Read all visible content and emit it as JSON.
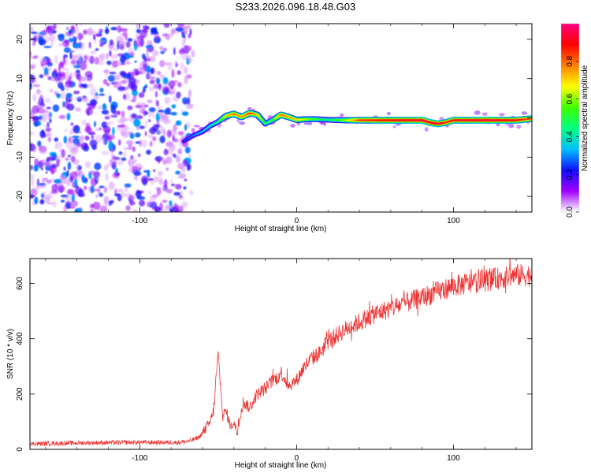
{
  "figure": {
    "title": "S233.2026.096.18.48.G03"
  },
  "chart_data": [
    {
      "type": "heatmap",
      "name": "spectrogram",
      "xlabel": "Height of straight line (km)",
      "ylabel": "Frequency (Hz)",
      "xlim": [
        -170,
        150
      ],
      "ylim": [
        -24,
        24
      ],
      "x_ticks": [
        -100,
        0,
        100
      ],
      "x_tick_labels": [
        "-100",
        "0",
        "100"
      ],
      "y_ticks": [
        -20,
        -10,
        0,
        10,
        20
      ],
      "y_tick_labels": [
        "-20",
        "-10",
        "0",
        "10",
        "20"
      ],
      "colorbar": {
        "label": "Normalized spectral amplitude",
        "range": [
          0,
          1
        ],
        "ticks": [
          0.0,
          0.2,
          0.4,
          0.6,
          0.8
        ],
        "tick_labels": [
          "0.0",
          "0.2",
          "0.4",
          "0.6",
          "0.8"
        ],
        "colormap": [
          "#ffffff",
          "#a000ff",
          "#1010ff",
          "#00c0ff",
          "#00ff80",
          "#40ff00",
          "#ffff00",
          "#ff8000",
          "#ff0000",
          "#ff0080"
        ]
      },
      "noise_region": {
        "x_range": [
          -170,
          -68
        ],
        "frequency_range": [
          -24,
          24
        ],
        "amplitude": "0.05–0.30"
      },
      "carrier_track": {
        "x": [
          -72,
          -66,
          -60,
          -55,
          -50,
          -45,
          -40,
          -35,
          -30,
          -25,
          -20,
          -15,
          -10,
          -5,
          0,
          10,
          20,
          30,
          40,
          60,
          80,
          85,
          90,
          95,
          100,
          120,
          140,
          150
        ],
        "frequency": [
          -6,
          -4.5,
          -3.5,
          -2,
          -1,
          0.5,
          1,
          0.2,
          1.2,
          0.8,
          -1.5,
          -0.5,
          0.8,
          0.2,
          -0.5,
          -0.3,
          -0.5,
          -0.6,
          -0.6,
          -0.6,
          -0.6,
          -1.2,
          -1.5,
          -1.2,
          -0.6,
          -0.6,
          -0.6,
          -0.2
        ],
        "amplitude": [
          0.25,
          0.3,
          0.35,
          0.4,
          0.45,
          0.7,
          0.8,
          0.75,
          0.85,
          0.7,
          0.45,
          0.55,
          0.8,
          0.75,
          0.7,
          0.55,
          0.45,
          0.6,
          0.85,
          0.9,
          0.95,
          0.9,
          0.95,
          0.85,
          0.9,
          0.95,
          0.9,
          0.8
        ]
      }
    },
    {
      "type": "line",
      "name": "snr",
      "xlabel": "Height of straight line (km)",
      "ylabel": "SNR (10 * v/v)",
      "xlim": [
        -170,
        150
      ],
      "ylim": [
        0,
        690
      ],
      "x_ticks": [
        -100,
        0,
        100
      ],
      "x_tick_labels": [
        "-100",
        "0",
        "100"
      ],
      "y_ticks": [
        0,
        200,
        400,
        600
      ],
      "y_tick_labels": [
        "0",
        "200",
        "400",
        "600"
      ],
      "color": "#ee3333",
      "series": [
        {
          "name": "SNR",
          "x": [
            -170,
            -150,
            -130,
            -110,
            -90,
            -75,
            -68,
            -62,
            -60,
            -58,
            -55,
            -53,
            -52,
            -51,
            -50,
            -47,
            -45,
            -42,
            -40,
            -38,
            -36,
            -34,
            -30,
            -25,
            -20,
            -15,
            -12,
            -10,
            -5,
            0,
            5,
            10,
            15,
            20,
            25,
            30,
            40,
            50,
            60,
            70,
            80,
            90,
            100,
            110,
            120,
            130,
            140,
            150
          ],
          "values": [
            20,
            22,
            24,
            25,
            25,
            25,
            30,
            45,
            60,
            75,
            100,
            140,
            200,
            290,
            340,
            120,
            140,
            80,
            100,
            60,
            120,
            170,
            150,
            200,
            220,
            250,
            260,
            280,
            230,
            250,
            300,
            330,
            350,
            390,
            410,
            430,
            460,
            490,
            510,
            530,
            550,
            570,
            590,
            600,
            610,
            620,
            630,
            630
          ]
        }
      ],
      "noise_amplitude": 25
    }
  ]
}
